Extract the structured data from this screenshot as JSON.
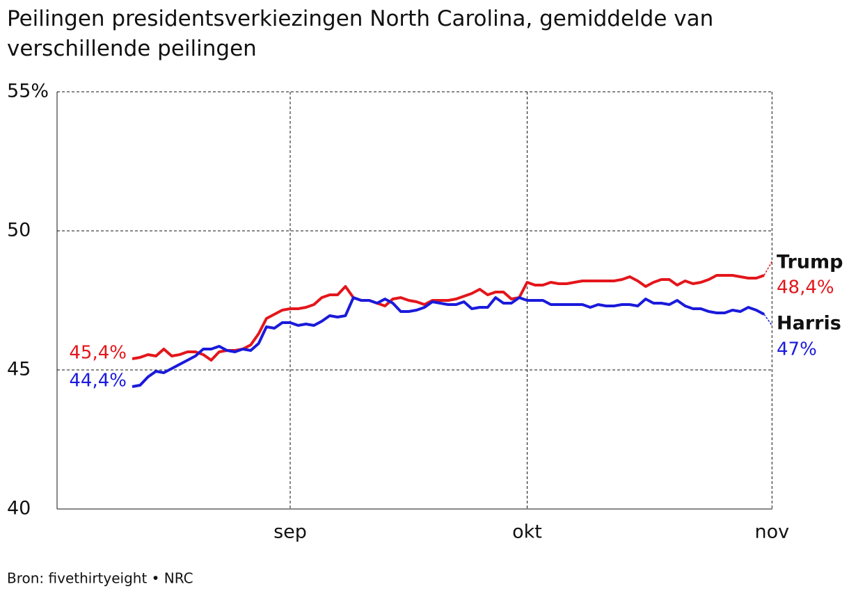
{
  "chart_data": {
    "type": "line",
    "title": "Peilingen presidentsverkiezingen North Carolina, gemiddelde van verschillende peilingen",
    "source": "Bron: fivethirtyeight • NRC",
    "categories": [
      null,
      null,
      null,
      null,
      null,
      null,
      null,
      null,
      null,
      null,
      null,
      null,
      null,
      null,
      null,
      null,
      null,
      null,
      null,
      null,
      null,
      null,
      null,
      null,
      null,
      null,
      null,
      null,
      null,
      null,
      "sep",
      null,
      null,
      null,
      null,
      null,
      null,
      null,
      null,
      null,
      null,
      null,
      null,
      null,
      null,
      null,
      null,
      null,
      null,
      null,
      null,
      null,
      null,
      null,
      null,
      null,
      null,
      null,
      null,
      null,
      "okt",
      null,
      null,
      null,
      null,
      null,
      null,
      null,
      null,
      null,
      null,
      null,
      null,
      null,
      null,
      null,
      null,
      null,
      null,
      null,
      null,
      null,
      null,
      null,
      null,
      null,
      null,
      null,
      null,
      null,
      null,
      "nov"
    ],
    "series": [
      {
        "name": "Trump",
        "color": "#e3161b",
        "values": [
          null,
          null,
          null,
          null,
          null,
          null,
          null,
          null,
          null,
          null,
          45.4,
          45.45,
          45.55,
          45.5,
          45.75,
          45.5,
          45.55,
          45.65,
          45.65,
          45.55,
          45.35,
          45.65,
          45.7,
          45.7,
          45.75,
          45.9,
          46.3,
          46.85,
          47,
          47.15,
          47.2,
          47.2,
          47.25,
          47.35,
          47.6,
          47.7,
          47.7,
          48.0,
          47.6,
          47.5,
          47.5,
          47.4,
          47.3,
          47.55,
          47.6,
          47.5,
          47.45,
          47.35,
          47.5,
          47.5,
          47.5,
          47.55,
          47.65,
          47.75,
          47.9,
          47.7,
          47.8,
          47.8,
          47.55,
          47.6,
          48.15,
          48.05,
          48.05,
          48.15,
          48.1,
          48.1,
          48.15,
          48.2,
          48.2,
          48.2,
          48.2,
          48.2,
          48.25,
          48.35,
          48.2,
          48.0,
          48.15,
          48.25,
          48.25,
          48.05,
          48.2,
          48.1,
          48.15,
          48.25,
          48.4,
          48.4,
          48.4,
          48.35,
          48.3,
          48.3,
          48.4,
          48.9
        ],
        "value_labels": [
          null,
          null,
          null,
          null,
          null,
          null,
          null,
          null,
          null,
          null,
          "45,4%",
          null,
          null,
          null,
          null,
          null,
          null,
          null,
          null,
          null,
          null,
          null,
          null,
          null,
          null,
          null,
          null,
          null,
          null,
          null,
          null,
          null,
          null,
          null,
          null,
          null,
          null,
          null,
          null,
          null,
          null,
          null,
          null,
          null,
          null,
          null,
          null,
          null,
          null,
          null,
          null,
          null,
          null,
          null,
          null,
          null,
          null,
          null,
          null,
          null,
          null,
          null,
          null,
          null,
          null,
          null,
          null,
          null,
          null,
          null,
          null,
          null,
          null,
          null,
          null,
          null,
          null,
          null,
          null,
          null,
          null,
          null,
          null,
          null,
          null,
          null,
          null,
          null,
          null,
          null,
          "48,4%",
          null
        ]
      },
      {
        "name": "Harris",
        "color": "#1a1adb",
        "values": [
          null,
          null,
          null,
          null,
          null,
          null,
          null,
          null,
          null,
          null,
          44.4,
          44.45,
          44.75,
          44.95,
          44.9,
          45.05,
          45.2,
          45.35,
          45.5,
          45.75,
          45.75,
          45.85,
          45.7,
          45.65,
          45.75,
          45.7,
          45.95,
          46.55,
          46.5,
          46.7,
          46.7,
          46.6,
          46.65,
          46.6,
          46.75,
          46.95,
          46.9,
          46.95,
          47.6,
          47.5,
          47.5,
          47.4,
          47.55,
          47.4,
          47.1,
          47.1,
          47.15,
          47.25,
          47.45,
          47.4,
          47.35,
          47.35,
          47.45,
          47.2,
          47.25,
          47.25,
          47.6,
          47.4,
          47.4,
          47.6,
          47.5,
          47.5,
          47.5,
          47.35,
          47.35,
          47.35,
          47.35,
          47.35,
          47.25,
          47.35,
          47.3,
          47.3,
          47.35,
          47.35,
          47.3,
          47.55,
          47.4,
          47.4,
          47.35,
          47.5,
          47.3,
          47.2,
          47.2,
          47.1,
          47.05,
          47.05,
          47.15,
          47.1,
          47.25,
          47.15,
          47.0,
          46.6
        ],
        "value_labels": [
          null,
          null,
          null,
          null,
          null,
          null,
          null,
          null,
          null,
          null,
          "44,4%",
          null,
          null,
          null,
          null,
          null,
          null,
          null,
          null,
          null,
          null,
          null,
          null,
          null,
          null,
          null,
          null,
          null,
          null,
          null,
          null,
          null,
          null,
          null,
          null,
          null,
          null,
          null,
          null,
          null,
          null,
          null,
          null,
          null,
          null,
          null,
          null,
          null,
          null,
          null,
          null,
          null,
          null,
          null,
          null,
          null,
          null,
          null,
          null,
          null,
          null,
          null,
          null,
          null,
          null,
          null,
          null,
          null,
          null,
          null,
          null,
          null,
          null,
          null,
          null,
          null,
          null,
          null,
          null,
          null,
          null,
          null,
          null,
          null,
          null,
          null,
          null,
          null,
          null,
          null,
          "47%",
          null
        ]
      }
    ],
    "ylim": [
      40,
      55
    ],
    "yticks": [
      40,
      45,
      50,
      {
        "value": 55,
        "label": "55%"
      }
    ],
    "grid": true
  }
}
